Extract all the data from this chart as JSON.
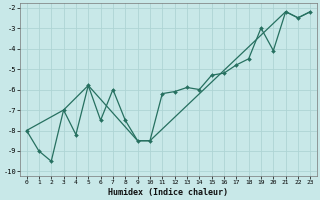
{
  "xlabel": "Humidex (Indice chaleur)",
  "bg_color": "#c8e8e8",
  "grid_color": "#aed4d4",
  "line_color": "#267060",
  "marker_color": "#267060",
  "xlim": [
    -0.5,
    23.5
  ],
  "ylim": [
    -10.2,
    -1.8
  ],
  "xticks": [
    0,
    1,
    2,
    3,
    4,
    5,
    6,
    7,
    8,
    9,
    10,
    11,
    12,
    13,
    14,
    15,
    16,
    17,
    18,
    19,
    20,
    21,
    22,
    23
  ],
  "yticks": [
    -10,
    -9,
    -8,
    -7,
    -6,
    -5,
    -4,
    -3,
    -2
  ],
  "series_zigzag": {
    "x": [
      0,
      1,
      2,
      3,
      4,
      5,
      6,
      7,
      8,
      9,
      10,
      11,
      12,
      13,
      14,
      15,
      16,
      17,
      18,
      19,
      20,
      21,
      22,
      23
    ],
    "y": [
      -8.0,
      -9.0,
      -9.5,
      -7.0,
      -8.2,
      -5.8,
      -7.5,
      -6.0,
      -7.5,
      -8.5,
      -8.5,
      -6.2,
      -6.1,
      -5.9,
      -6.0,
      -5.3,
      -5.2,
      -4.8,
      -4.5,
      -3.0,
      -4.1,
      -2.2,
      -2.5,
      -2.2
    ]
  },
  "series_trend": {
    "x": [
      0,
      3,
      5,
      9,
      10,
      21,
      22,
      23
    ],
    "y": [
      -8.0,
      -7.0,
      -5.8,
      -8.5,
      -8.5,
      -2.2,
      -2.5,
      -2.2
    ]
  }
}
